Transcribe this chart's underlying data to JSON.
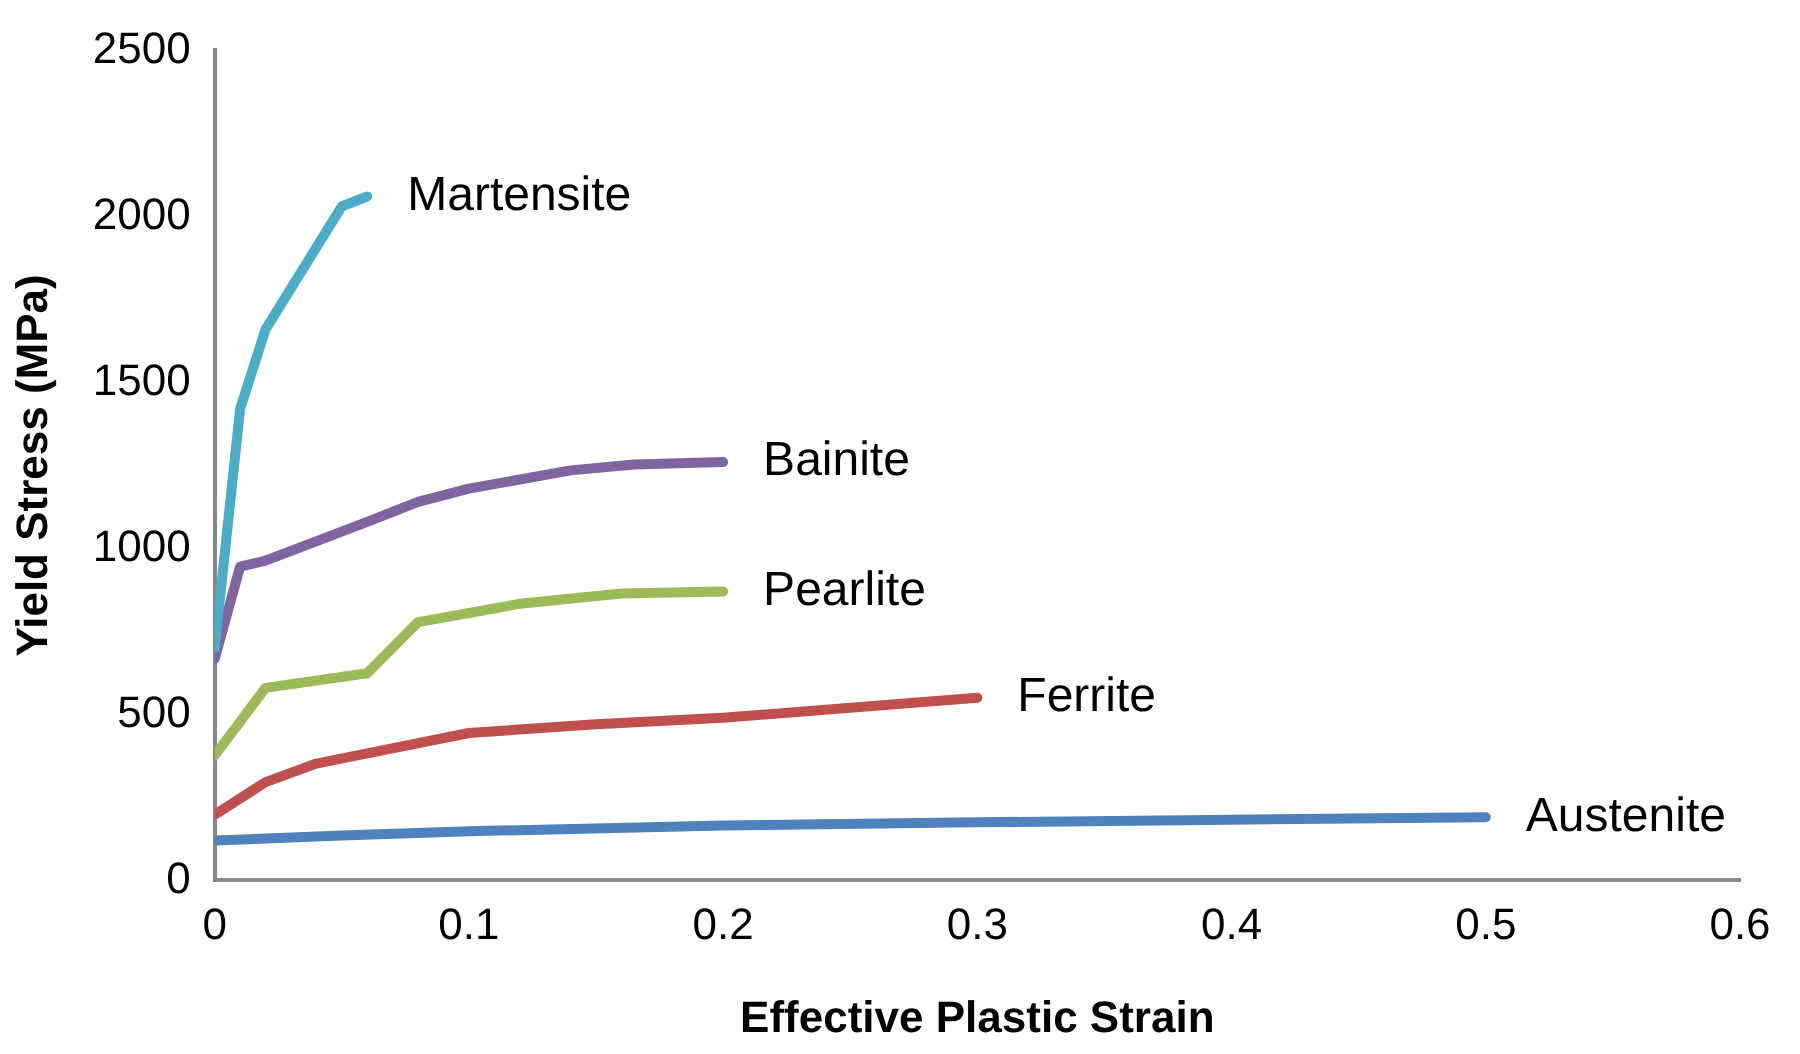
{
  "chart_data": {
    "type": "line",
    "xlabel": "Effective Plastic Strain",
    "ylabel": "Yield Stress (MPa)",
    "xlim": [
      0,
      0.6
    ],
    "xticks": [
      0,
      0.1,
      0.2,
      0.3,
      0.4,
      0.5,
      0.6
    ],
    "ylim": [
      0,
      2500
    ],
    "yticks": [
      0,
      500,
      1000,
      1500,
      2000,
      2500
    ],
    "grid": false,
    "legend": false,
    "marker": "none",
    "line_style": "solid",
    "series": [
      {
        "name": "Martensite",
        "color": "#4bacc6",
        "x": [
          0,
          0.01,
          0.02,
          0.05,
          0.06
        ],
        "values": [
          700,
          1420,
          1660,
          2030,
          2060
        ]
      },
      {
        "name": "Bainite",
        "color": "#8064a2",
        "x": [
          0,
          0.01,
          0.02,
          0.06,
          0.08,
          0.1,
          0.14,
          0.165,
          0.2
        ],
        "values": [
          667,
          945,
          963,
          1080,
          1140,
          1180,
          1235,
          1253,
          1260
        ]
      },
      {
        "name": "Pearlite",
        "color": "#9bbb59",
        "x": [
          0,
          0.02,
          0.06,
          0.08,
          0.12,
          0.16,
          0.2
        ],
        "values": [
          376,
          580,
          624,
          778,
          833,
          864,
          870
        ]
      },
      {
        "name": "Ferrite",
        "color": "#c0504d",
        "x": [
          0,
          0.02,
          0.04,
          0.1,
          0.15,
          0.2,
          0.3
        ],
        "values": [
          198,
          296,
          352,
          444,
          470,
          490,
          550
        ]
      },
      {
        "name": "Austenite",
        "color": "#4f81bd",
        "x": [
          0,
          0.05,
          0.1,
          0.2,
          0.3,
          0.4,
          0.5
        ],
        "values": [
          120,
          135,
          148,
          165,
          175,
          183,
          190
        ]
      }
    ]
  }
}
